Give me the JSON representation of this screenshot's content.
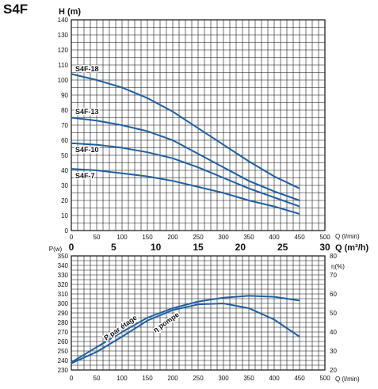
{
  "title": "S4F",
  "colors": {
    "curve": "#1f5fa0",
    "grid": "#111111",
    "frame": "#111111"
  },
  "chart_data": [
    {
      "type": "line",
      "panel": "head",
      "ylabel": "H (m)",
      "xlabel_lpm": "Q (l/min)",
      "xlabel_m3h": "Q (m³/h)",
      "xlim": [
        0,
        500
      ],
      "ylim": [
        0,
        140
      ],
      "x_ticks": [
        "0",
        "50",
        "100",
        "150",
        "200",
        "250",
        "300",
        "350",
        "400",
        "450",
        "500"
      ],
      "y_ticks": [
        "0",
        "10",
        "20",
        "30",
        "40",
        "50",
        "60",
        "70",
        "80",
        "90",
        "100",
        "110",
        "120",
        "130",
        "140"
      ],
      "m3h_ticks": [
        "0",
        "5",
        "10",
        "15",
        "20",
        "25",
        "30"
      ],
      "series": [
        {
          "name": "S4F-18",
          "x": [
            0,
            50,
            100,
            150,
            200,
            250,
            300,
            350,
            400,
            450
          ],
          "y": [
            104,
            100,
            95,
            88,
            79,
            68,
            57,
            46,
            36,
            28
          ]
        },
        {
          "name": "S4F-13",
          "x": [
            0,
            50,
            100,
            150,
            200,
            250,
            300,
            350,
            400,
            450
          ],
          "y": [
            75,
            73,
            70,
            66,
            60,
            51,
            42,
            33,
            26,
            20
          ]
        },
        {
          "name": "S4F-10",
          "x": [
            0,
            50,
            100,
            150,
            200,
            250,
            300,
            350,
            400,
            450
          ],
          "y": [
            58,
            57,
            55,
            52,
            48,
            42,
            35,
            28,
            22,
            16
          ]
        },
        {
          "name": "S4F-7",
          "x": [
            0,
            50,
            100,
            150,
            200,
            250,
            300,
            350,
            400,
            450
          ],
          "y": [
            41,
            40,
            38,
            36,
            33,
            29,
            25,
            20,
            16,
            11
          ]
        }
      ]
    },
    {
      "type": "line",
      "panel": "power",
      "ylabel": "P(w)",
      "ylabel_right": "η(%)",
      "xlabel": "Q (l/min)",
      "xlim": [
        0,
        500
      ],
      "ylim": [
        230,
        350
      ],
      "ylim_right": [
        20,
        80
      ],
      "x_ticks": [
        "0",
        "50",
        "100",
        "150",
        "200",
        "250",
        "300",
        "350",
        "400",
        "450",
        "500"
      ],
      "y_ticks": [
        "230",
        "240",
        "250",
        "260",
        "270",
        "280",
        "290",
        "300",
        "310",
        "320",
        "330",
        "340",
        "350"
      ],
      "y_ticks_right": [
        "20",
        "30",
        "40",
        "50",
        "60",
        "70",
        "80"
      ],
      "series": [
        {
          "name": "P par étage",
          "axis": "left",
          "x": [
            0,
            50,
            100,
            150,
            200,
            250,
            300,
            350,
            400,
            450
          ],
          "y": [
            237,
            249,
            265,
            282,
            293,
            299,
            300,
            295,
            283,
            265
          ]
        },
        {
          "name": "η pompe",
          "axis": "left",
          "x": [
            0,
            50,
            100,
            150,
            200,
            250,
            300,
            350,
            400,
            450
          ],
          "y": [
            238,
            254,
            270,
            285,
            295,
            302,
            306,
            308,
            307,
            303
          ]
        }
      ]
    }
  ]
}
